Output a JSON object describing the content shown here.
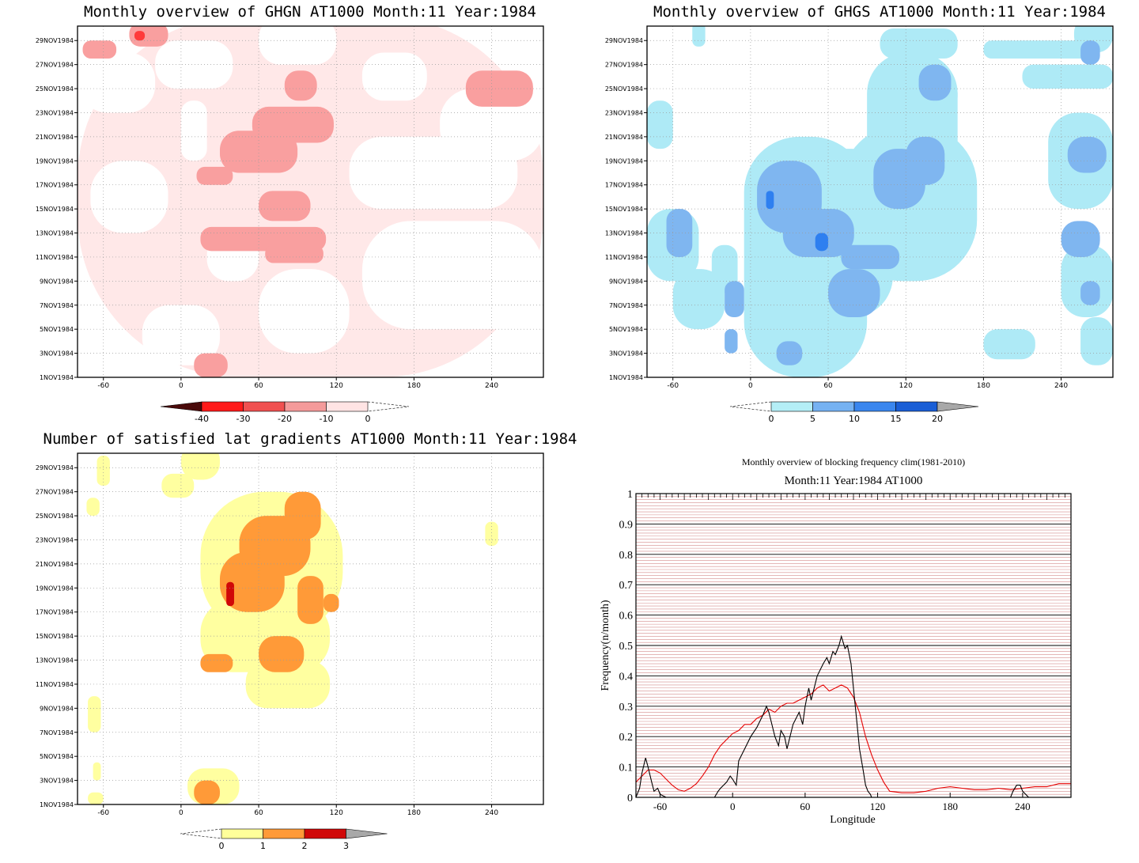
{
  "chart_data": [
    {
      "type": "heatmap",
      "title": "Monthly overview of GHGN AT1000 Month:11 Year:1984",
      "x_ticks": [
        -60,
        0,
        60,
        120,
        180,
        240
      ],
      "xlim": [
        -80,
        280
      ],
      "y_ticks": [
        "1NOV1984",
        "3NOV1984",
        "5NOV1984",
        "7NOV1984",
        "9NOV1984",
        "11NOV1984",
        "13NOV1984",
        "15NOV1984",
        "17NOV1984",
        "19NOV1984",
        "21NOV1984",
        "23NOV1984",
        "25NOV1984",
        "27NOV1984",
        "29NOV1984"
      ],
      "colorbar": {
        "labels": [
          "-40",
          "-30",
          "-20",
          "-10",
          "0"
        ],
        "colors": [
          "#4a0a0a",
          "#ff1a1a",
          "#f05050",
          "#f49a9a",
          "#ffe4e4"
        ]
      },
      "levels": [
        {
          "color": "#ffe8e8",
          "blobs": [
            [
              -80,
              0,
              280,
              30
            ]
          ]
        },
        {
          "color": "#ffffff",
          "blobs": [
            [
              -78,
              22,
              -20,
              27
            ],
            [
              140,
              23,
              190,
              27
            ],
            [
              -30,
              1,
              30,
              6
            ],
            [
              60,
              2,
              130,
              9
            ],
            [
              140,
              4,
              280,
              13
            ],
            [
              200,
              18,
              280,
              24
            ],
            [
              -70,
              12,
              -10,
              18
            ],
            [
              20,
              8,
              60,
              12
            ],
            [
              130,
              14,
              260,
              20
            ],
            [
              -20,
              24,
              40,
              28
            ],
            [
              60,
              26,
              120,
              30
            ],
            [
              0,
              18,
              20,
              23
            ]
          ]
        },
        {
          "color": "#f99f9f",
          "blobs": [
            [
              10,
              0,
              36,
              2
            ],
            [
              -76,
              26.5,
              -50,
              28
            ],
            [
              -40,
              27.5,
              -10,
              29.5
            ],
            [
              220,
              22.5,
              272,
              25.5
            ],
            [
              12,
              16,
              40,
              17.5
            ],
            [
              30,
              17,
              90,
              20.5
            ],
            [
              55,
              19.5,
              118,
              22.5
            ],
            [
              80,
              23,
              105,
              25.5
            ],
            [
              15,
              10.5,
              112,
              12.5
            ],
            [
              60,
              13,
              100,
              15.5
            ],
            [
              65,
              9.5,
              110,
              11
            ]
          ]
        },
        {
          "color": "#ff3a3a",
          "blobs": [
            [
              -36,
              28,
              -28,
              28.8
            ]
          ]
        }
      ]
    },
    {
      "type": "heatmap",
      "title": "Monthly overview of GHGS AT1000 Month:11 Year:1984",
      "x_ticks": [
        -60,
        0,
        60,
        120,
        180,
        240
      ],
      "xlim": [
        -80,
        280
      ],
      "y_ticks": [
        "1NOV1984",
        "3NOV1984",
        "5NOV1984",
        "7NOV1984",
        "9NOV1984",
        "11NOV1984",
        "13NOV1984",
        "15NOV1984",
        "17NOV1984",
        "19NOV1984",
        "21NOV1984",
        "23NOV1984",
        "25NOV1984",
        "27NOV1984",
        "29NOV1984"
      ],
      "colorbar": {
        "labels": [
          "0",
          "5",
          "10",
          "15",
          "20"
        ],
        "colors": [
          "#b4eef6",
          "#76b2f2",
          "#3a86ee",
          "#1a5ed6",
          "#a8a8a8"
        ]
      },
      "levels": [
        {
          "color": "#aeeaf6",
          "blobs": [
            [
              -80,
              8,
              -40,
              14
            ],
            [
              -80,
              19,
              -60,
              23
            ],
            [
              -45,
              27.5,
              -35,
              29.5
            ],
            [
              -5,
              0,
              90,
              20
            ],
            [
              40,
              5,
              110,
              19
            ],
            [
              70,
              8,
              175,
              21
            ],
            [
              90,
              15,
              160,
              27
            ],
            [
              100,
              22,
              160,
              25
            ],
            [
              100,
              26.5,
              160,
              29
            ],
            [
              180,
              1.5,
              220,
              4
            ],
            [
              180,
              26.5,
              270,
              28
            ],
            [
              210,
              24,
              280,
              26
            ],
            [
              230,
              14,
              280,
              22
            ],
            [
              240,
              5,
              280,
              11
            ],
            [
              255,
              1,
              280,
              5
            ],
            [
              250,
              27,
              280,
              30
            ],
            [
              -60,
              4,
              -20,
              9
            ],
            [
              -30,
              7,
              -10,
              11
            ]
          ]
        },
        {
          "color": "#7fb6f0",
          "blobs": [
            [
              -65,
              10,
              -45,
              14
            ],
            [
              -20,
              5,
              -5,
              8
            ],
            [
              -20,
              2,
              -10,
              4
            ],
            [
              5,
              12,
              55,
              18
            ],
            [
              25,
              10,
              80,
              14
            ],
            [
              60,
              5,
              100,
              9
            ],
            [
              70,
              9,
              115,
              11
            ],
            [
              95,
              14,
              135,
              19
            ],
            [
              120,
              16,
              150,
              20
            ],
            [
              130,
              23,
              155,
              26
            ],
            [
              240,
              10,
              270,
              13
            ],
            [
              245,
              17,
              275,
              20
            ],
            [
              255,
              6,
              270,
              8
            ],
            [
              255,
              26,
              270,
              28
            ],
            [
              20,
              1,
              40,
              3
            ]
          ]
        },
        {
          "color": "#2e7ff0",
          "blobs": [
            [
              12,
              14,
              18,
              15.5
            ],
            [
              50,
              10.5,
              60,
              12
            ]
          ]
        }
      ]
    },
    {
      "type": "heatmap",
      "title": "Number of satisfied lat gradients AT1000 Month:11 Year:1984",
      "x_ticks": [
        -60,
        0,
        60,
        120,
        180,
        240
      ],
      "xlim": [
        -80,
        280
      ],
      "y_ticks": [
        "1NOV1984",
        "3NOV1984",
        "5NOV1984",
        "7NOV1984",
        "9NOV1984",
        "11NOV1984",
        "13NOV1984",
        "15NOV1984",
        "17NOV1984",
        "19NOV1984",
        "21NOV1984",
        "23NOV1984",
        "25NOV1984",
        "27NOV1984",
        "29NOV1984"
      ],
      "colorbar": {
        "labels": [
          "0",
          "1",
          "2",
          "3"
        ],
        "colors": [
          "#ffff9a",
          "#ff9a38",
          "#d00808",
          "#a8a8a8"
        ]
      },
      "levels": [
        {
          "color": "#ffffa0",
          "blobs": [
            [
              -65,
              26.5,
              -55,
              29
            ],
            [
              -73,
              24,
              -63,
              25.5
            ],
            [
              -72,
              6,
              -62,
              9
            ],
            [
              -68,
              2,
              -62,
              3.5
            ],
            [
              -72,
              0,
              -60,
              1
            ],
            [
              0,
              27,
              30,
              30
            ],
            [
              -15,
              25.5,
              10,
              27.5
            ],
            [
              15,
              14,
              125,
              26
            ],
            [
              15,
              11,
              115,
              17
            ],
            [
              50,
              8,
              115,
              12
            ],
            [
              5,
              0,
              45,
              3
            ],
            [
              235,
              21.5,
              245,
              23.5
            ]
          ]
        },
        {
          "color": "#ff9a38",
          "blobs": [
            [
              30,
              16,
              80,
              21
            ],
            [
              45,
              19,
              100,
              24
            ],
            [
              80,
              22,
              108,
              26
            ],
            [
              90,
              15,
              110,
              19
            ],
            [
              110,
              16,
              122,
              17.5
            ],
            [
              15,
              11,
              40,
              12.5
            ],
            [
              60,
              11,
              95,
              14
            ],
            [
              10,
              0,
              30,
              2
            ]
          ]
        },
        {
          "color": "#d00808",
          "blobs": [
            [
              35,
              16.5,
              41,
              18.5
            ]
          ]
        }
      ]
    },
    {
      "type": "line",
      "title": "Monthly overview of blocking frequency clim(1981-2010)",
      "subtitle": "Month:11 Year:1984  AT1000",
      "xlabel": "Longitude",
      "ylabel": "Frequency(n/month)",
      "x_ticks": [
        -60,
        0,
        60,
        120,
        180,
        240
      ],
      "y_ticks": [
        "0",
        "0.1",
        "0.2",
        "0.3",
        "0.4",
        "0.5",
        "0.6",
        "0.7",
        "0.8",
        "0.9",
        "1"
      ],
      "xlim": [
        -80,
        280
      ],
      "ylim": [
        0,
        1
      ],
      "series": [
        {
          "color": "#000000",
          "x": [
            -80,
            -77,
            -75,
            -72,
            -70,
            -67,
            -65,
            -62,
            -60,
            -55,
            -50,
            -15,
            -12,
            -10,
            -5,
            -2,
            0,
            3,
            5,
            10,
            15,
            20,
            25,
            28,
            30,
            35,
            38,
            40,
            43,
            45,
            50,
            55,
            58,
            60,
            63,
            65,
            70,
            75,
            78,
            80,
            83,
            85,
            88,
            90,
            93,
            95,
            98,
            100,
            103,
            105,
            108,
            110,
            112,
            114,
            115,
            230,
            232,
            235,
            238,
            240,
            245,
            250,
            280
          ],
          "y": [
            0,
            0.03,
            0.08,
            0.13,
            0.1,
            0.05,
            0.02,
            0.03,
            0.01,
            0,
            0,
            0,
            0.02,
            0.03,
            0.05,
            0.07,
            0.06,
            0.04,
            0.12,
            0.16,
            0.2,
            0.23,
            0.27,
            0.3,
            0.28,
            0.2,
            0.17,
            0.22,
            0.2,
            0.16,
            0.24,
            0.28,
            0.24,
            0.3,
            0.36,
            0.32,
            0.4,
            0.44,
            0.46,
            0.44,
            0.48,
            0.47,
            0.5,
            0.53,
            0.49,
            0.5,
            0.44,
            0.36,
            0.24,
            0.16,
            0.09,
            0.04,
            0.02,
            0.01,
            0,
            0,
            0.02,
            0.04,
            0.04,
            0.02,
            0,
            0,
            0
          ]
        },
        {
          "color": "#e60000",
          "x": [
            -80,
            -75,
            -70,
            -65,
            -60,
            -55,
            -50,
            -45,
            -40,
            -35,
            -30,
            -25,
            -20,
            -15,
            -10,
            -5,
            0,
            5,
            10,
            15,
            20,
            25,
            30,
            35,
            40,
            45,
            50,
            55,
            60,
            65,
            70,
            75,
            80,
            85,
            90,
            95,
            100,
            105,
            110,
            115,
            120,
            125,
            130,
            140,
            150,
            160,
            170,
            180,
            190,
            200,
            210,
            220,
            230,
            240,
            250,
            260,
            270,
            280
          ],
          "y": [
            0.05,
            0.07,
            0.09,
            0.09,
            0.08,
            0.06,
            0.04,
            0.025,
            0.02,
            0.03,
            0.045,
            0.07,
            0.1,
            0.14,
            0.17,
            0.19,
            0.21,
            0.22,
            0.24,
            0.24,
            0.26,
            0.27,
            0.29,
            0.28,
            0.3,
            0.31,
            0.31,
            0.32,
            0.33,
            0.34,
            0.36,
            0.37,
            0.35,
            0.36,
            0.37,
            0.36,
            0.33,
            0.28,
            0.2,
            0.14,
            0.09,
            0.05,
            0.02,
            0.015,
            0.015,
            0.02,
            0.03,
            0.035,
            0.03,
            0.025,
            0.025,
            0.03,
            0.025,
            0.03,
            0.035,
            0.035,
            0.045,
            0.045
          ]
        }
      ]
    }
  ]
}
